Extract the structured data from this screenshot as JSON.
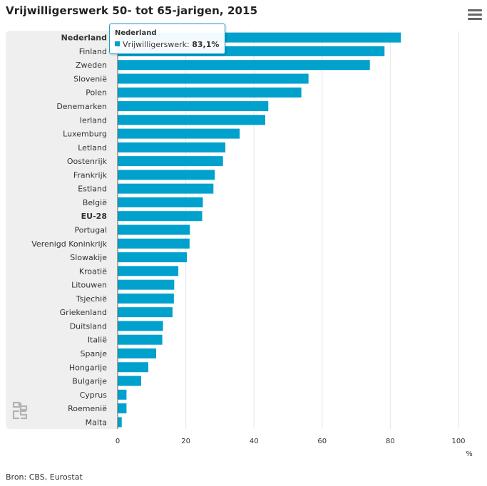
{
  "title": "Vrijwilligerswerk 50- tot 65-jarigen, 2015",
  "source": "Bron: CBS, Eurostat",
  "menu_icon": "hamburger-menu-icon",
  "logo_icon": "cbs-logo-icon",
  "colors": {
    "bar": "#00a1cd",
    "panel": "#efefef",
    "grid": "#e6e6e6",
    "tooltip_border": "#1a9fd1"
  },
  "tooltip": {
    "country": "Nederland",
    "series": "Vrijwilligerswerk:",
    "value": "83,1%"
  },
  "chart_data": {
    "type": "bar",
    "orientation": "horizontal",
    "title": "Vrijwilligerswerk 50- tot 65-jarigen, 2015",
    "xlabel": "%",
    "xlim": [
      0,
      100
    ],
    "xticks": [
      0,
      20,
      40,
      60,
      80,
      100
    ],
    "grid": true,
    "bold_categories": [
      "Nederland",
      "EU-28"
    ],
    "categories": [
      "Nederland",
      "Finland",
      "Zweden",
      "Slovenië",
      "Polen",
      "Denemarken",
      "Ierland",
      "Luxemburg",
      "Letland",
      "Oostenrijk",
      "Frankrijk",
      "Estland",
      "België",
      "EU-28",
      "Portugal",
      "Verenigd Koninkrijk",
      "Slowakije",
      "Kroatië",
      "Litouwen",
      "Tsjechië",
      "Griekenland",
      "Duitsland",
      "Italië",
      "Spanje",
      "Hongarije",
      "Bulgarije",
      "Cyprus",
      "Roemenië",
      "Malta"
    ],
    "values": [
      83.1,
      78.3,
      74.0,
      56.0,
      53.9,
      44.2,
      43.3,
      35.8,
      31.6,
      30.9,
      28.5,
      28.1,
      25.0,
      24.8,
      21.2,
      21.1,
      20.3,
      17.8,
      16.6,
      16.5,
      16.1,
      13.3,
      13.1,
      11.3,
      9.0,
      6.9,
      2.6,
      2.6,
      1.2
    ]
  }
}
